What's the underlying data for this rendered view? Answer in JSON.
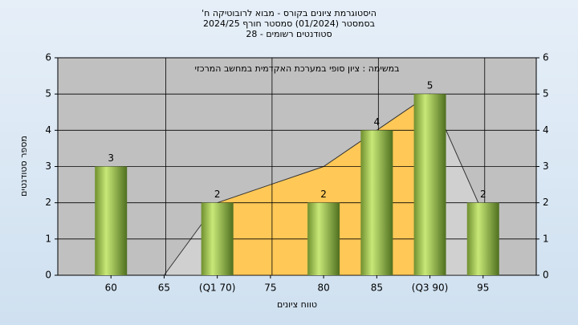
{
  "chart_data": {
    "type": "bar",
    "title": "היסטוגרמת ציונים בקורס - מבוא לרובוטיקה ח'",
    "subtitle": "בסמסטר  (01/2024)  סמסטר חורף 2024/25",
    "subtitle2": "סטודנטים רשומים - 28",
    "annotation": "במשימה : ציון סופי במערכת האקדמית במחשב המרכזי",
    "x_label": "טווח ציונים",
    "y_label": "מספר סטודנטים",
    "categories": [
      "60",
      "65",
      "(Q1 70)",
      "75",
      "80",
      "85",
      "(Q3 90)",
      "95"
    ],
    "values": [
      3,
      0,
      2,
      0,
      2,
      4,
      5,
      2
    ],
    "color": "#8fbf3f",
    "ylim": [
      0,
      6
    ],
    "yticks": [
      0,
      1,
      2,
      3,
      4,
      5,
      6
    ],
    "grid": true,
    "area": {
      "x": [
        65,
        70,
        75,
        80,
        85,
        90,
        95
      ],
      "values": [
        0,
        2,
        2.5,
        3,
        4,
        5,
        1.7
      ],
      "color": "#d0d0d0",
      "highlight_color": "#ffc857",
      "highlight_range": [
        70,
        90
      ]
    },
    "x_start": 60,
    "x_step": 5
  }
}
